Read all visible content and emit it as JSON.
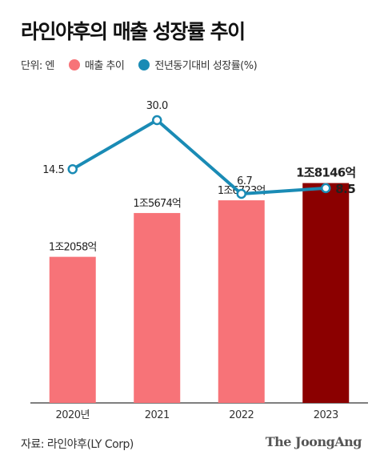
{
  "title": "라인야후의 매출 성장률 추이",
  "legend": {
    "unit": "단위: 엔",
    "items": [
      {
        "label": "매출 추이",
        "color": "#f77378"
      },
      {
        "label": "전년동기대비 성장률(%)",
        "color": "#1a8bb5"
      }
    ]
  },
  "source": "자료: 라인야후(LY Corp)",
  "brand": "The JoongAng",
  "chart_data": {
    "type": "bar+line",
    "categories": [
      "2020년",
      "2021",
      "2022",
      "2023"
    ],
    "series": [
      {
        "type": "bar",
        "values": [
          1205800000000,
          1567400000000,
          1672300000000,
          1814600000000
        ],
        "labels": [
          "1조2058억",
          "1조5674억",
          "1조6723억",
          "1조8146억"
        ],
        "colors": [
          "#f77378",
          "#f77378",
          "#f77378",
          "#8b0000"
        ]
      },
      {
        "type": "line",
        "values": [
          14.5,
          30.0,
          6.7,
          8.5
        ],
        "labels": [
          "14.5",
          "30.0",
          "6.7",
          "8.5"
        ],
        "color": "#1a8bb5"
      }
    ]
  }
}
